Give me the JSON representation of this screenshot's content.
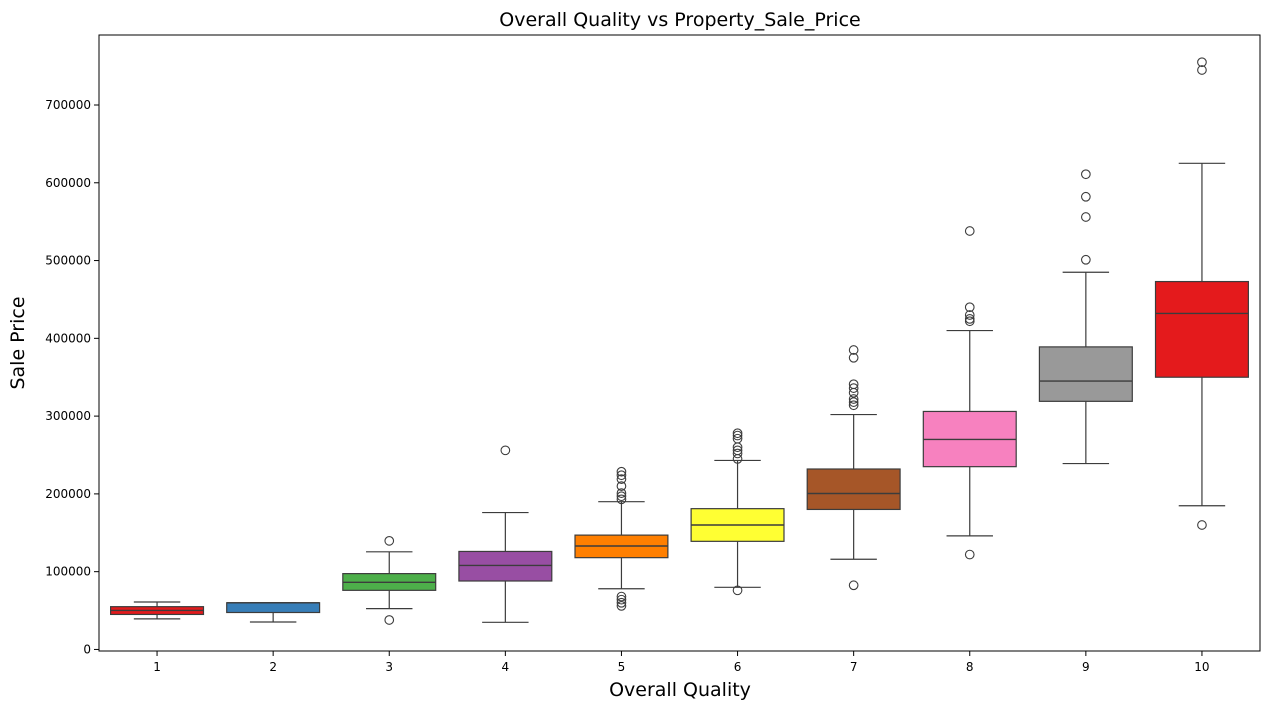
{
  "chart_data": {
    "type": "box",
    "title": "Overall Quality vs Property_Sale_Price",
    "xlabel": "Overall Quality",
    "ylabel": "Sale Price",
    "ylim": [
      -2000,
      790000
    ],
    "yticks": [
      0,
      100000,
      200000,
      300000,
      400000,
      500000,
      600000,
      700000
    ],
    "grid": false,
    "categories": [
      "1",
      "2",
      "3",
      "4",
      "5",
      "6",
      "7",
      "8",
      "9",
      "10"
    ],
    "boxes": [
      {
        "category": "1",
        "color": "#e41a1c",
        "whisker_low": 39300,
        "q1": 45000,
        "median": 50150,
        "q3": 55000,
        "whisker_high": 61000,
        "outliers": []
      },
      {
        "category": "2",
        "color": "#377eb8",
        "whisker_low": 35300,
        "q1": 47500,
        "median": 60000,
        "q3": 60000,
        "whisker_high": 60000,
        "outliers": []
      },
      {
        "category": "3",
        "color": "#4daf4a",
        "whisker_low": 52500,
        "q1": 76000,
        "median": 86250,
        "q3": 97500,
        "whisker_high": 125500,
        "outliers": [
          139600,
          37900
        ]
      },
      {
        "category": "4",
        "color": "#984ea3",
        "whisker_low": 34900,
        "q1": 88000,
        "median": 108000,
        "q3": 126000,
        "whisker_high": 176000,
        "outliers": [
          256000
        ]
      },
      {
        "category": "5",
        "color": "#ff7f00",
        "whisker_low": 78000,
        "q1": 118000,
        "median": 133000,
        "q3": 147000,
        "whisker_high": 190000,
        "outliers": [
          228500,
          224000,
          219000,
          210000,
          201000,
          197000,
          193000,
          68000,
          64000,
          60000,
          56000
        ]
      },
      {
        "category": "6",
        "color": "#ffff33",
        "whisker_low": 79900,
        "q1": 139000,
        "median": 160000,
        "q3": 181000,
        "whisker_high": 243000,
        "outliers": [
          278000,
          275000,
          271000,
          260000,
          256000,
          252000,
          245000,
          76000
        ]
      },
      {
        "category": "7",
        "color": "#a65628",
        "whisker_low": 116000,
        "q1": 180000,
        "median": 200500,
        "q3": 232000,
        "whisker_high": 302000,
        "outliers": [
          385000,
          375000,
          341000,
          336000,
          330000,
          322000,
          318000,
          314000,
          82500
        ]
      },
      {
        "category": "8",
        "color": "#f781bf",
        "whisker_low": 146000,
        "q1": 235000,
        "median": 270000,
        "q3": 306000,
        "whisker_high": 410000,
        "outliers": [
          538000,
          440000,
          430000,
          425000,
          422000,
          122000
        ]
      },
      {
        "category": "9",
        "color": "#999999",
        "whisker_low": 239000,
        "q1": 319000,
        "median": 345000,
        "q3": 389000,
        "whisker_high": 485000,
        "outliers": [
          611000,
          582000,
          556000,
          501000
        ]
      },
      {
        "category": "10",
        "color": "#e41a1c",
        "whisker_low": 184750,
        "q1": 350000,
        "median": 432000,
        "q3": 473000,
        "whisker_high": 625000,
        "outliers": [
          755000,
          745000,
          160000
        ]
      }
    ]
  }
}
